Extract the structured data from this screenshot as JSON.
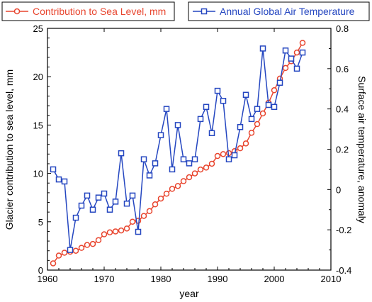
{
  "chart_data": {
    "type": "line",
    "xlabel": "year",
    "x_ticks": [
      "1960",
      "1970",
      "1980",
      "1990",
      "2000",
      "2010"
    ],
    "xlim": [
      1960,
      2010
    ],
    "y_left": {
      "label": "Glacier contribution to sea level, mm",
      "ylim": [
        0,
        25
      ],
      "ticks": [
        "0",
        "5",
        "10",
        "15",
        "20",
        "25"
      ]
    },
    "y_right": {
      "label": "Surface air temperature, anomaly",
      "ylim": [
        -0.4,
        0.8
      ],
      "ticks": [
        "-0.4",
        "-0.2",
        "0",
        "0.2",
        "0.4",
        "0.6",
        "0.8"
      ]
    },
    "grid": false,
    "legend_position": "top",
    "series": [
      {
        "name": "Contribution to Sea Level, mm",
        "axis": "left",
        "marker": "circle",
        "color": "#e8452e",
        "x": [
          1961,
          1962,
          1963,
          1964,
          1965,
          1966,
          1967,
          1968,
          1969,
          1970,
          1971,
          1972,
          1973,
          1974,
          1975,
          1976,
          1977,
          1978,
          1979,
          1980,
          1981,
          1982,
          1983,
          1984,
          1985,
          1986,
          1987,
          1988,
          1989,
          1990,
          1991,
          1992,
          1993,
          1994,
          1995,
          1996,
          1997,
          1998,
          1999,
          2000,
          2001,
          2002,
          2003,
          2004,
          2005
        ],
        "values": [
          0.7,
          1.5,
          1.8,
          1.9,
          2.0,
          2.3,
          2.6,
          2.7,
          3.1,
          3.7,
          3.9,
          4.0,
          4.1,
          4.3,
          5.0,
          5.1,
          5.6,
          6.1,
          6.8,
          7.4,
          7.9,
          8.4,
          8.7,
          9.2,
          9.6,
          10.0,
          10.4,
          10.6,
          11.0,
          11.8,
          12.0,
          12.1,
          12.3,
          12.6,
          13.1,
          14.2,
          15.1,
          16.2,
          17.3,
          18.6,
          19.8,
          20.9,
          21.6,
          22.5,
          23.5
        ]
      },
      {
        "name": "Annual Global Air Temperature",
        "axis": "right",
        "marker": "square",
        "color": "#2446c0",
        "x": [
          1961,
          1962,
          1963,
          1964,
          1965,
          1966,
          1967,
          1968,
          1969,
          1970,
          1971,
          1972,
          1973,
          1974,
          1975,
          1976,
          1977,
          1978,
          1979,
          1980,
          1981,
          1982,
          1983,
          1984,
          1985,
          1986,
          1987,
          1988,
          1989,
          1990,
          1991,
          1992,
          1993,
          1994,
          1995,
          1996,
          1997,
          1998,
          1999,
          2000,
          2001,
          2002,
          2003,
          2004,
          2005
        ],
        "values": [
          0.1,
          0.05,
          0.04,
          -0.3,
          -0.14,
          -0.08,
          -0.03,
          -0.1,
          -0.04,
          -0.02,
          -0.1,
          -0.06,
          0.18,
          -0.07,
          -0.03,
          -0.21,
          0.15,
          0.07,
          0.13,
          0.27,
          0.4,
          0.1,
          0.32,
          0.15,
          0.13,
          0.15,
          0.35,
          0.41,
          0.28,
          0.49,
          0.44,
          0.15,
          0.17,
          0.31,
          0.47,
          0.35,
          0.4,
          0.7,
          0.42,
          0.41,
          0.53,
          0.69,
          0.65,
          0.6,
          0.68
        ]
      }
    ]
  }
}
